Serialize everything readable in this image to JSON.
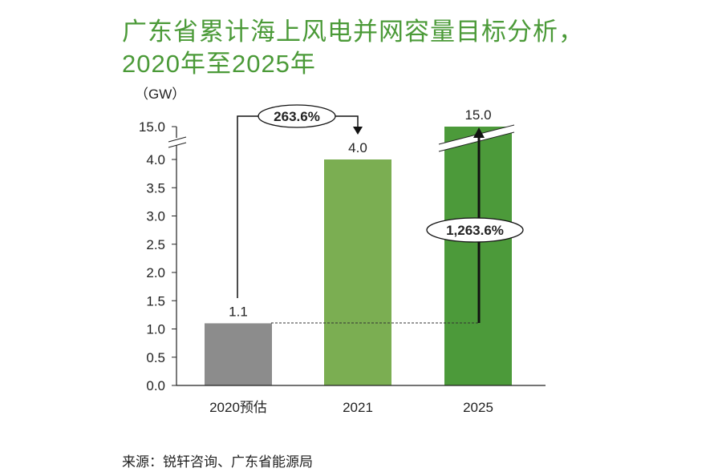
{
  "title_line1": "广东省累计海上风电并网容量目标分析，",
  "title_line2": "2020年至2025年",
  "source": "来源：锐轩咨询、广东省能源局",
  "colors": {
    "title": "#4b9a38",
    "bar_2020": "#8c8c8c",
    "bar_2021": "#7bae52",
    "bar_2025": "#4c9a3a"
  },
  "chart_data": {
    "type": "bar",
    "ylabel": "（GW）",
    "categories": [
      "2020预估",
      "2021",
      "2025"
    ],
    "values": [
      1.1,
      4.0,
      15.0
    ],
    "data_labels": [
      "1.1",
      "4.0",
      "15.0"
    ],
    "yticks": [
      "0.0",
      "0.5",
      "1.0",
      "1.5",
      "2.0",
      "2.5",
      "3.0",
      "3.5",
      "4.0",
      "15.0"
    ],
    "ylim": [
      0,
      4.0
    ],
    "axis_break": "between 4.0 and 15.0",
    "annotations": [
      {
        "text": "263.6%",
        "from": "2020预估",
        "to": "2021"
      },
      {
        "text": "1,263.6%",
        "from": "2020预估",
        "to": "2025"
      }
    ],
    "grid": false
  }
}
